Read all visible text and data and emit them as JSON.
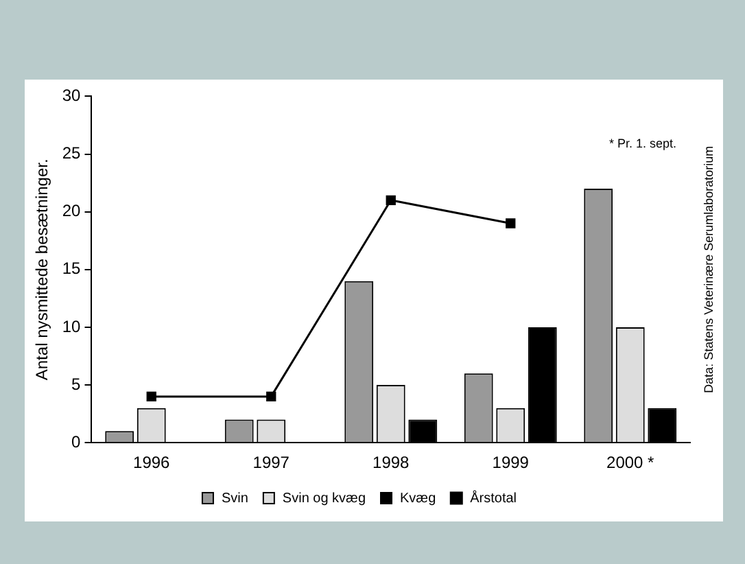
{
  "chart_data": {
    "type": "bar",
    "ylabel": "Antal nysmittede besætninger.",
    "categories": [
      "1996",
      "1997",
      "1998",
      "1999",
      "2000 *"
    ],
    "series": [
      {
        "name": "Svin",
        "color": "#999999",
        "values": [
          1,
          2,
          14,
          6,
          22
        ]
      },
      {
        "name": "Svin og kvæg",
        "color": "#dddddd",
        "values": [
          3,
          2,
          5,
          3,
          10
        ]
      },
      {
        "name": "Kvæg",
        "color": "#000000",
        "values": [
          0,
          0,
          2,
          10,
          3
        ]
      },
      {
        "name": "Årstotal",
        "type": "line",
        "color": "#000000",
        "values": [
          4,
          4,
          21,
          19,
          null
        ]
      }
    ],
    "ylim": [
      0,
      30
    ],
    "yticks": [
      0,
      5,
      10,
      15,
      20,
      25,
      30
    ],
    "grid": false,
    "legend": "bottom",
    "marker": "square",
    "line_style": "solid",
    "annotations": [
      "* Pr. 1. sept.",
      "Data: Statens Veterinære Serumlaboratorium"
    ]
  }
}
